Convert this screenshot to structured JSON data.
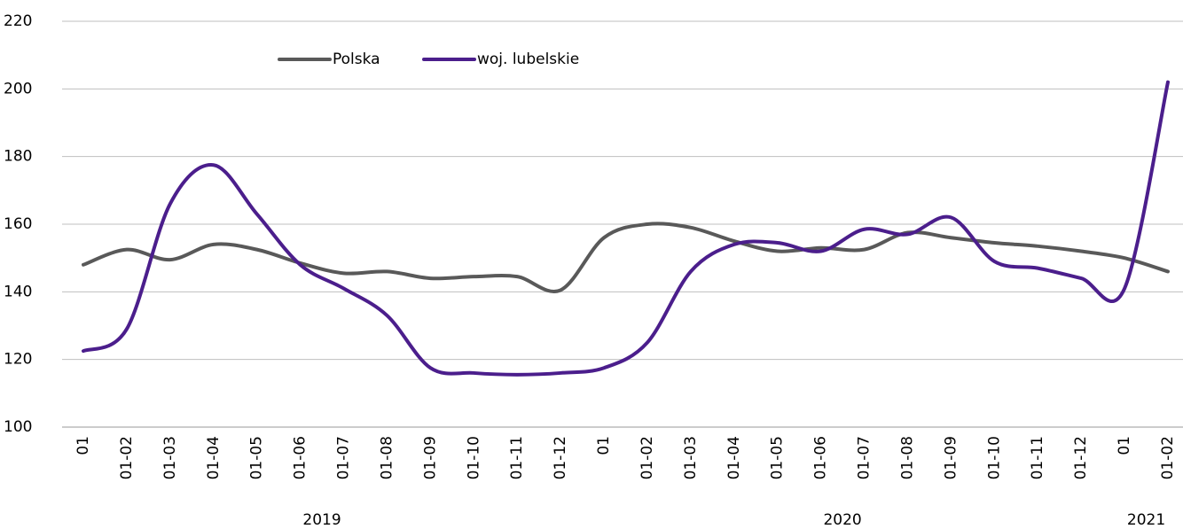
{
  "chart_data": {
    "type": "line",
    "groups": [
      {
        "label": "2019",
        "categories": [
          "01",
          "01-02",
          "01-03",
          "01-04",
          "01-05",
          "01-06",
          "01-07",
          "01-08",
          "01-09",
          "01-10",
          "01-11",
          "01-12"
        ]
      },
      {
        "label": "2020",
        "categories": [
          "01",
          "01-02",
          "01-03",
          "01-04",
          "01-05",
          "01-06",
          "01-07",
          "01-08",
          "01-09",
          "01-10",
          "01-11",
          "01-12"
        ]
      },
      {
        "label": "2021",
        "categories": [
          "01",
          "01-02"
        ]
      }
    ],
    "series": [
      {
        "name": "Polska",
        "color": "#595959",
        "values": [
          148,
          152.5,
          149.5,
          154,
          152.5,
          148.5,
          145.5,
          146,
          144,
          144.5,
          144.5,
          140.5,
          156,
          160,
          159,
          155,
          152,
          153,
          152.5,
          157.5,
          156,
          154.5,
          153.5,
          152,
          150,
          146
        ]
      },
      {
        "name": "woj. lubelskie",
        "color": "#4b1e8c",
        "values": [
          122.5,
          129,
          166,
          177.5,
          163,
          148,
          141,
          133,
          117.5,
          116,
          115.5,
          116,
          117.5,
          125,
          146,
          154,
          154.5,
          152,
          158.5,
          157,
          162,
          149,
          147,
          144,
          141,
          202
        ]
      }
    ],
    "ylim": [
      100,
      220
    ],
    "yticks": [
      100,
      120,
      140,
      160,
      180,
      200,
      220
    ],
    "grid": true,
    "smooth": true,
    "legend": "top"
  }
}
